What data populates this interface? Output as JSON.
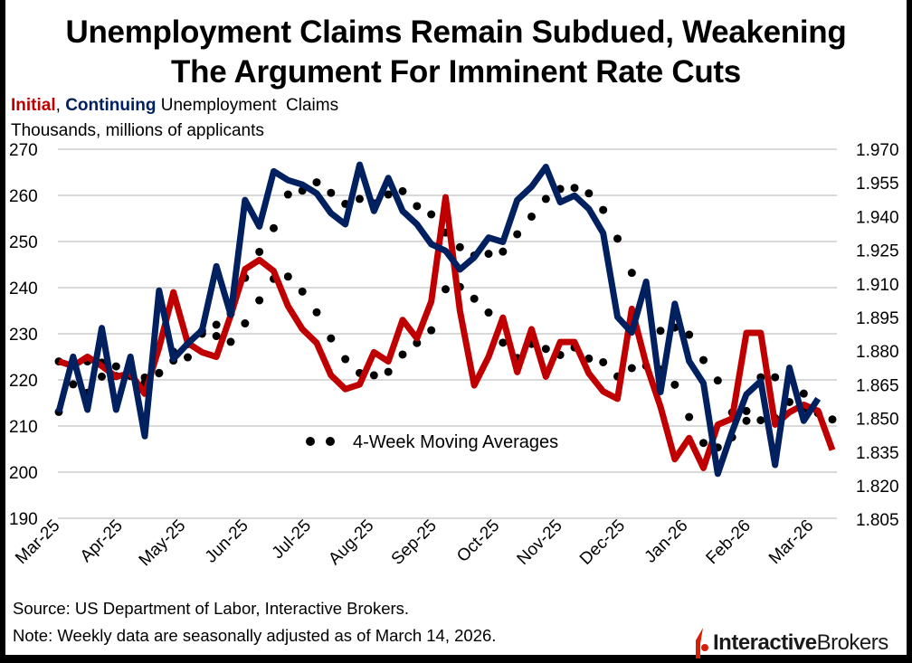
{
  "title": {
    "line1": "Unemployment Claims Remain Subdued, Weakening",
    "line2": "The Argument For Imminent Rate Cuts"
  },
  "subtitle": {
    "initial": "Initial",
    "sep": ", ",
    "continuing": "Continuing",
    "rest": " Unemployment  Claims"
  },
  "units": "Thousands, millions of applicants",
  "source": "Source: US Department of Labor, Interactive Brokers.",
  "note": "Note: Weekly data are seasonally adjusted as of March 14, 2026.",
  "logo": {
    "part1": "Interactive",
    "part2": "Brokers"
  },
  "colors": {
    "initial": "#c00000",
    "continuing": "#002060",
    "moving_average": "#000000",
    "grid": "#d9d9d9"
  },
  "chart_data": {
    "type": "line",
    "legend": [
      {
        "label": "4-Week Moving Averages",
        "placement": "center-bottom"
      }
    ],
    "grid": true,
    "x_tick_labels": [
      "Mar-25",
      "Apr-25",
      "May-25",
      "Jun-25",
      "Jul-25",
      "Aug-25",
      "Sep-25",
      "Oct-25",
      "Nov-25",
      "Dec-25",
      "Jan-26",
      "Feb-26",
      "Mar-26"
    ],
    "y_left": {
      "ylim": [
        190,
        270
      ],
      "ticks": [
        "270",
        "260",
        "250",
        "240",
        "230",
        "220",
        "210",
        "200",
        "190"
      ]
    },
    "y_right": {
      "ylim": [
        1.805,
        1.97
      ],
      "ticks": [
        "1.970",
        "1.955",
        "1.940",
        "1.925",
        "1.910",
        "1.895",
        "1.880",
        "1.865",
        "1.850",
        "1.835",
        "1.820",
        "1.805"
      ]
    },
    "series": [
      {
        "name": "Initial",
        "axis": "left",
        "frequency": "weekly",
        "values": [
          224,
          223,
          225,
          223,
          220.7,
          221.4,
          217,
          227,
          239,
          228,
          226,
          225,
          234,
          244,
          246,
          243.6,
          236,
          231,
          228,
          221,
          218,
          219,
          226,
          224,
          233,
          229,
          237,
          259.6,
          235,
          218.8,
          225,
          233.5,
          221.7,
          231,
          220.7,
          228.2,
          228.2,
          221.4,
          217.5,
          215.9,
          235.4,
          223.4,
          214.2,
          202.8,
          207.4,
          200.9,
          210.3,
          211.6,
          230.2,
          230.2,
          210.3,
          213,
          214.6,
          213.3,
          204.8
        ]
      },
      {
        "name": "Continuing",
        "axis": "right",
        "frequency": "weekly",
        "values": [
          1.851,
          1.876,
          1.852,
          1.889,
          1.852,
          1.876,
          1.84,
          1.906,
          1.875,
          1.882,
          1.888,
          1.917,
          1.895,
          1.947,
          1.935,
          1.96,
          1.956,
          1.954,
          1.95,
          1.941,
          1.936,
          1.963,
          1.942,
          1.957,
          1.942,
          1.936,
          1.927,
          1.924,
          1.9155,
          1.921,
          1.93,
          1.928,
          1.947,
          1.953,
          1.962,
          1.946,
          1.949,
          1.943,
          1.932,
          1.894,
          1.887,
          1.91,
          1.86,
          1.9,
          1.874,
          1.864,
          1.823,
          1.842,
          1.859,
          1.865,
          1.827,
          1.871,
          1.847,
          1.857
        ]
      }
    ]
  }
}
